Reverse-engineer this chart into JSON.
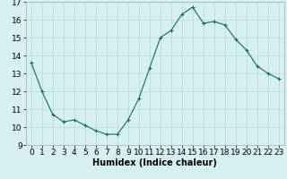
{
  "x": [
    0,
    1,
    2,
    3,
    4,
    5,
    6,
    7,
    8,
    9,
    10,
    11,
    12,
    13,
    14,
    15,
    16,
    17,
    18,
    19,
    20,
    21,
    22,
    23
  ],
  "y": [
    13.6,
    12.0,
    10.7,
    10.3,
    10.4,
    10.1,
    9.8,
    9.6,
    9.6,
    10.4,
    11.6,
    13.3,
    15.0,
    15.4,
    16.3,
    16.7,
    15.8,
    15.9,
    15.7,
    14.9,
    14.3,
    13.4,
    13.0,
    12.7
  ],
  "xlim": [
    -0.5,
    23.5
  ],
  "ylim": [
    9,
    17
  ],
  "yticks": [
    9,
    10,
    11,
    12,
    13,
    14,
    15,
    16,
    17
  ],
  "xticks": [
    0,
    1,
    2,
    3,
    4,
    5,
    6,
    7,
    8,
    9,
    10,
    11,
    12,
    13,
    14,
    15,
    16,
    17,
    18,
    19,
    20,
    21,
    22,
    23
  ],
  "xlabel": "Humidex (Indice chaleur)",
  "line_color": "#1a6b5a",
  "marker": "+",
  "bg_color": "#d6f0f0",
  "grid_color": "#b8d8d8",
  "xlabel_fontsize": 7,
  "tick_fontsize": 6.5
}
